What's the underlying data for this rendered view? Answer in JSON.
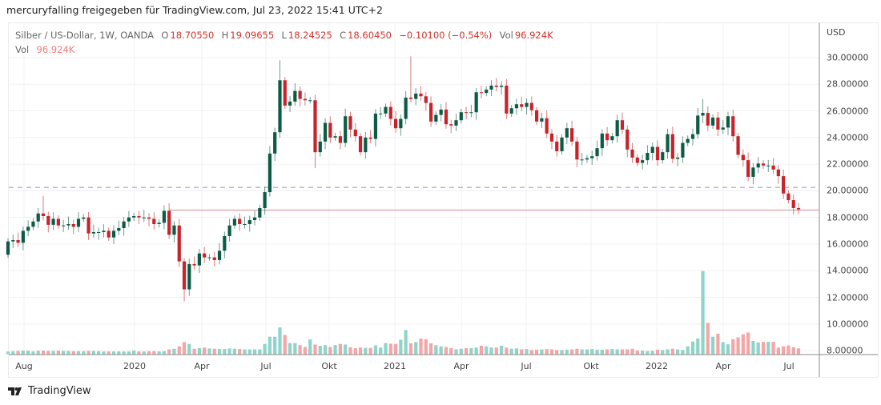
{
  "header": {
    "text": "mercuryfalling freigegeben für TradingView.com, Jul 23, 2022 15:41 UTC+2"
  },
  "legend": {
    "symbol": "Silber / US-Dollar, 1W, OANDA",
    "o_label": "O",
    "o": "18.70550",
    "h_label": "H",
    "h": "19.09655",
    "l_label": "L",
    "l": "18.24525",
    "c_label": "C",
    "c": "18.60450",
    "change": "−0.10100 (−0.54%)",
    "vol_label": "Vol",
    "vol": "96.924K",
    "vol2_label": "Vol",
    "vol2": "96.924K"
  },
  "logo": {
    "text": "TradingView"
  },
  "chart_data": {
    "type": "candlestick",
    "title": "Silber / US-Dollar, 1W, OANDA",
    "currency": "USD",
    "ylim": [
      8,
      30
    ],
    "yticks": [
      "30.00000",
      "28.00000",
      "26.00000",
      "24.00000",
      "22.00000",
      "20.00000",
      "18.00000",
      "16.00000",
      "14.00000",
      "12.00000",
      "10.00000",
      "8.00000"
    ],
    "xticks": [
      "Aug",
      "2020",
      "Apr",
      "Jul",
      "Okt",
      "2021",
      "Apr",
      "Jul",
      "Okt",
      "2022",
      "Apr",
      "Jul"
    ],
    "dashed_line_price": 20.26,
    "horizontal_line_price": 18.55,
    "colors": {
      "up": "#0b5c45",
      "down": "#c8232a",
      "vol_up": "#8fd4c9",
      "vol_down": "#f5a5a5",
      "dashed": "#8a8fd6",
      "hline": "#d9a0a0"
    },
    "first_open": 15.2,
    "closes": [
      16.2,
      16.3,
      16.1,
      17.0,
      17.3,
      17.7,
      18.3,
      18.1,
      17.45,
      17.9,
      17.4,
      17.4,
      17.5,
      17.3,
      17.9,
      18.0,
      16.8,
      16.9,
      16.9,
      17.0,
      16.5,
      17.0,
      17.2,
      17.7,
      18.0,
      18.1,
      18.0,
      18.0,
      17.9,
      17.5,
      17.6,
      18.5,
      16.7,
      17.4,
      14.7,
      12.6,
      14.5,
      14.4,
      15.3,
      15.0,
      15.0,
      14.8,
      15.5,
      16.6,
      17.4,
      17.9,
      17.5,
      17.5,
      17.8,
      18.0,
      18.7,
      19.9,
      22.8,
      24.4,
      28.3,
      26.4,
      26.7,
      27.5,
      26.9,
      26.8,
      26.8,
      22.9,
      23.7,
      25.1,
      24.0,
      24.1,
      23.6,
      25.6,
      24.6,
      24.1,
      22.9,
      24.0,
      23.9,
      25.8,
      25.8,
      26.3,
      25.4,
      24.7,
      25.4,
      27.0,
      26.9,
      27.3,
      27.1,
      26.6,
      25.2,
      25.7,
      26.1,
      25.0,
      24.9,
      25.3,
      25.9,
      25.85,
      25.9,
      27.4,
      27.35,
      27.6,
      27.9,
      27.8,
      27.9,
      25.8,
      26.2,
      26.5,
      26.3,
      26.6,
      26.05,
      25.2,
      25.45,
      24.3,
      23.7,
      22.97,
      24.0,
      24.7,
      23.7,
      22.35,
      22.35,
      22.45,
      22.6,
      23.2,
      24.3,
      23.8,
      24.1,
      25.3,
      24.6,
      23.1,
      22.5,
      22.1,
      22.3,
      22.85,
      23.3,
      22.3,
      22.9,
      24.25,
      22.4,
      22.5,
      23.6,
      23.9,
      24.25,
      25.65,
      25.85,
      24.9,
      25.5,
      24.6,
      24.75,
      25.6,
      24.1,
      22.7,
      22.3,
      21.05,
      21.75,
      22.05,
      21.9,
      21.9,
      21.6,
      21.1,
      19.8,
      19.3,
      18.7055,
      18.6045
    ],
    "wick_extremes": [
      {
        "week": 7,
        "high": 19.6
      },
      {
        "week": 35,
        "low": 11.7
      },
      {
        "week": 54,
        "high": 29.8
      },
      {
        "week": 61,
        "low": 21.7
      },
      {
        "week": 80,
        "high": 30.1
      },
      {
        "week": 138,
        "high": 26.9
      },
      {
        "week": 157,
        "high": 19.09655,
        "low": 18.24525
      }
    ],
    "volume_k": [
      45,
      50,
      55,
      60,
      60,
      45,
      55,
      60,
      55,
      55,
      60,
      55,
      55,
      50,
      50,
      50,
      55,
      55,
      50,
      45,
      45,
      45,
      45,
      45,
      45,
      60,
      45,
      45,
      50,
      50,
      45,
      50,
      80,
      90,
      130,
      200,
      170,
      90,
      100,
      110,
      95,
      90,
      85,
      85,
      95,
      90,
      85,
      80,
      80,
      80,
      80,
      170,
      290,
      290,
      445,
      320,
      185,
      185,
      150,
      120,
      245,
      160,
      140,
      150,
      120,
      150,
      170,
      160,
      115,
      100,
      110,
      105,
      105,
      145,
      110,
      185,
      175,
      170,
      240,
      400,
      180,
      200,
      260,
      250,
      180,
      150,
      130,
      120,
      100,
      80,
      90,
      100,
      100,
      110,
      140,
      130,
      110,
      110,
      140,
      110,
      90,
      95,
      80,
      85,
      70,
      75,
      80,
      85,
      80,
      70,
      70,
      75,
      80,
      90,
      80,
      80,
      85,
      75,
      75,
      80,
      85,
      80,
      80,
      80,
      90,
      60,
      60,
      50,
      55,
      75,
      70,
      80,
      90,
      80,
      70,
      130,
      210,
      260,
      1380,
      520,
      290,
      340,
      200,
      165,
      250,
      280,
      330,
      360,
      220,
      195,
      205,
      205,
      205,
      110,
      130,
      145,
      115,
      96.924
    ]
  }
}
